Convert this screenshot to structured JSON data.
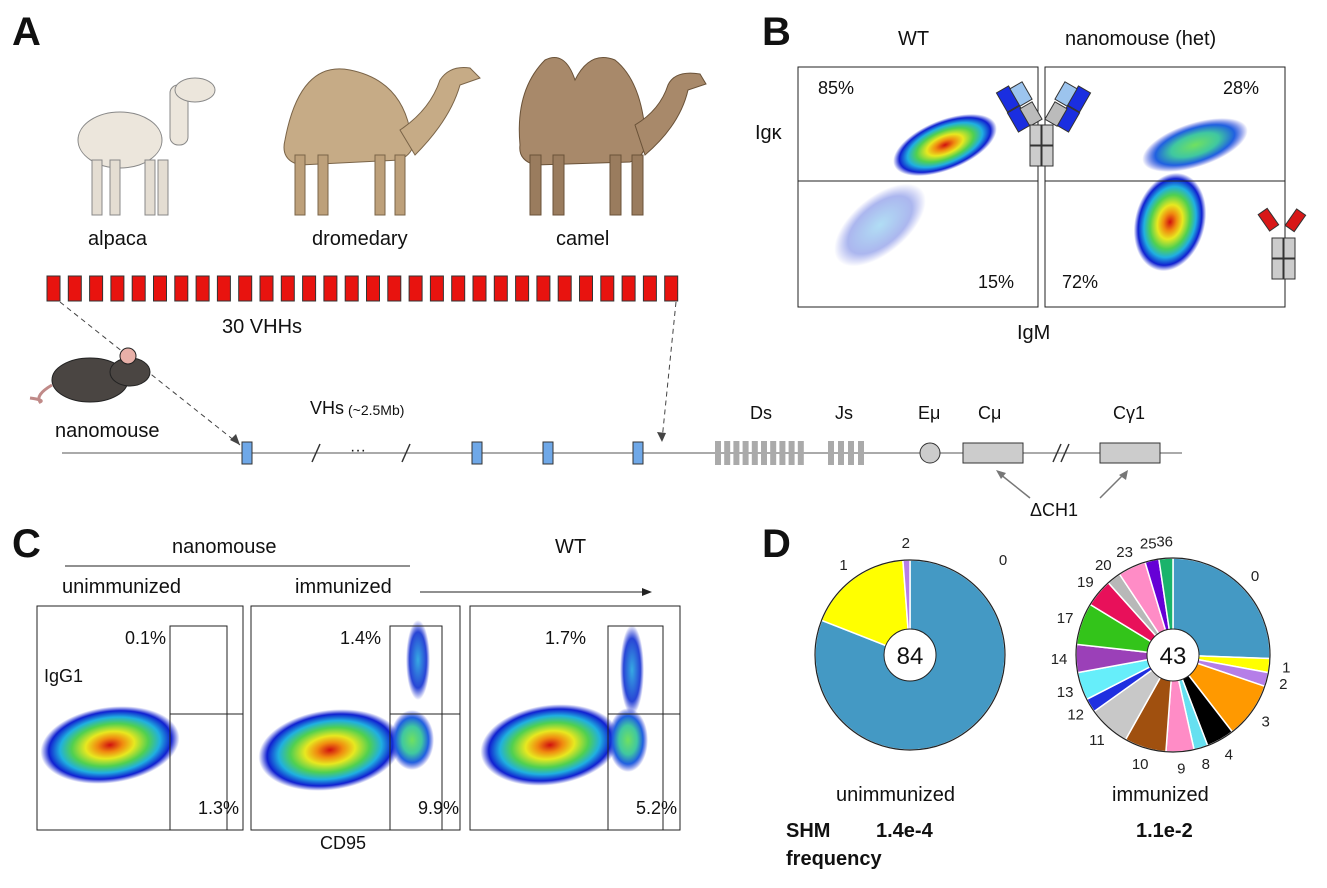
{
  "panels": {
    "a": "A",
    "b": "B",
    "c": "C",
    "d": "D"
  },
  "panel_a": {
    "animals": [
      "alpaca",
      "dromedary",
      "camel"
    ],
    "vhh_label": "30 VHHs",
    "vhh_count": 30,
    "mouse_label": "nanomouse",
    "vhs_label": "VHs",
    "vhs_size": "(~2.5Mb)",
    "ellipsis": "···",
    "ds_label": "Ds",
    "js_label": "Js",
    "emu_label": "Eμ",
    "cmu_label": "Cμ",
    "cg1_label": "Cγ1",
    "dch1_label": "ΔCH1",
    "colors": {
      "vhh": "#e8130f",
      "vh": "#6fa8e8",
      "segment": "#aaaaaa"
    }
  },
  "panel_b": {
    "titles": [
      "WT",
      "nanomouse (het)"
    ],
    "ylabel": "Igκ",
    "xlabel": "IgM",
    "wt": {
      "upper": "85%",
      "lower": "15%"
    },
    "nano": {
      "upper": "28%",
      "lower": "72%"
    }
  },
  "panel_c": {
    "group_label": "nanomouse",
    "wt_label": "WT",
    "conditions": [
      "unimmunized",
      "immunized"
    ],
    "ylabel": "IgG1",
    "xlabel": "CD95",
    "plots": [
      {
        "upper": "0.1%",
        "lower": "1.3%"
      },
      {
        "upper": "1.4%",
        "lower": "9.9%"
      },
      {
        "upper": "1.7%",
        "lower": "5.2%"
      }
    ]
  },
  "panel_d": {
    "shm_label": "SHM",
    "frequency_label": "frequency",
    "chart_data": [
      {
        "type": "pie",
        "title": "unimmunized",
        "center_label": "84",
        "shm_frequency": "1.4e-4",
        "categories": [
          "0",
          "1",
          "2"
        ],
        "values": [
          68,
          15,
          1
        ],
        "colors": [
          "#4499c4",
          "#ffff00",
          "#b57ee8"
        ]
      },
      {
        "type": "pie",
        "title": "immunized",
        "center_label": "43",
        "shm_frequency": "1.1e-2",
        "categories": [
          "0",
          "1",
          "2",
          "3",
          "4",
          "8",
          "9",
          "10",
          "11",
          "12",
          "13",
          "14",
          "17",
          "19",
          "20",
          "23",
          "25",
          "36"
        ],
        "values": [
          11,
          1,
          1,
          4,
          2,
          1,
          2,
          3,
          3,
          1,
          2,
          2,
          3,
          2,
          1,
          2,
          1,
          1
        ],
        "colors": [
          "#4499c4",
          "#ffff00",
          "#b57ee8",
          "#ff9900",
          "#000000",
          "#66e0f0",
          "#ff8cc6",
          "#a0500f",
          "#c8c8c8",
          "#1f2fe0",
          "#66eefa",
          "#9b40b8",
          "#33c41a",
          "#e8105a",
          "#b8b8b8",
          "#ff8cc6",
          "#6600d6",
          "#1ab36b"
        ]
      }
    ]
  }
}
